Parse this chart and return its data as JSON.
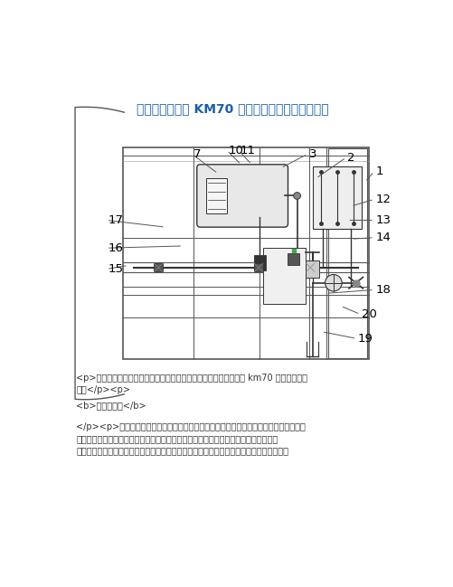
{
  "title": "一种便于维护的 KM70 气动底开门系统的制作方法",
  "title_color": "#1a5fa8",
  "title_fontsize": 10.0,
  "bg_color": "#ffffff",
  "text_block1": "<p>本发明属于铁路货车风动控制系统领域，具体为一种便于维护的 km70 气动底开门系\n统。</p><p>",
  "text_block2": "<b>背景技术：</b>",
  "text_block3": "</p><p>现有生活中，煤炭漏斗车是一种地道向内侧倾斜或管端置量大圆弧，车体下前装\n有漏斗的铁路货车，货物由上面装入，煤炭漏斗车主要用以装运矿石、水泥、煤炭等散\n粒货物，在铁路运输中具有重要意义。漏斗车就其结构可分为有盖、无盖两种，铁路用漏斗",
  "text_fontsize": 7.0,
  "line_color": "#555555",
  "dark_color": "#333333"
}
